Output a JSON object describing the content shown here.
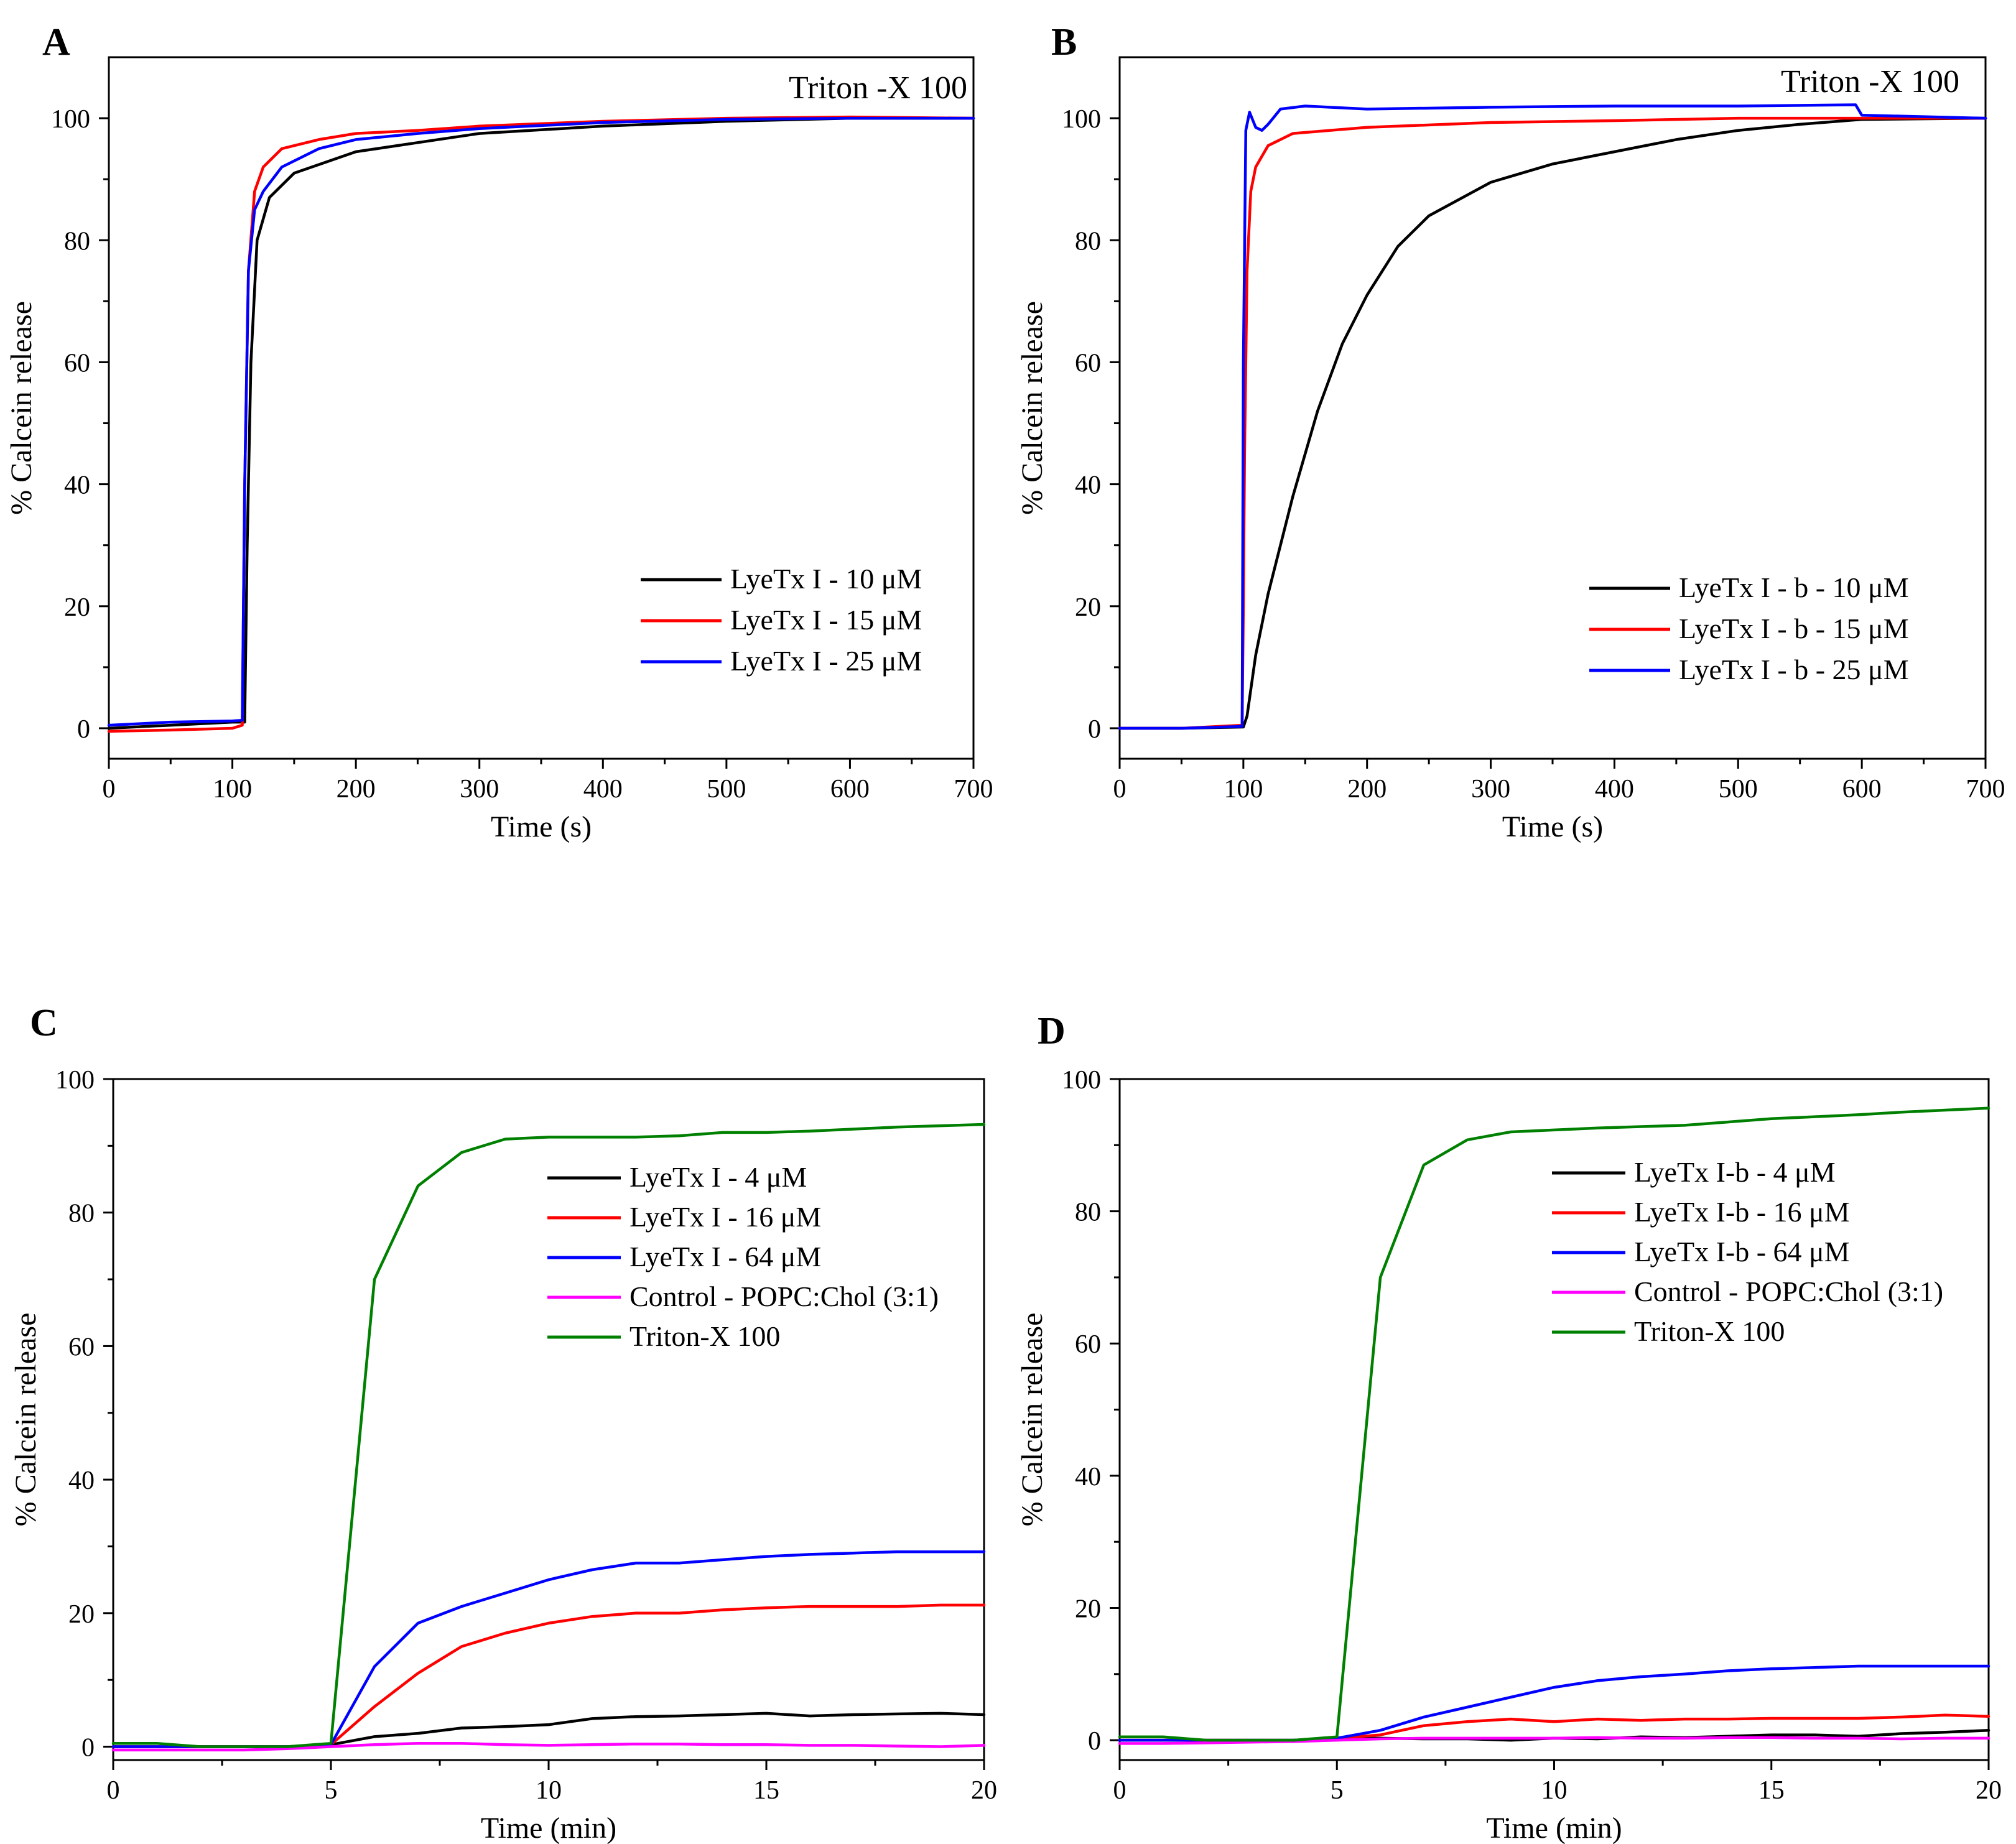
{
  "chart_data": [
    {
      "panel": "A",
      "type": "line",
      "xlabel": "Time (s)",
      "ylabel": "% Calcein release",
      "xlim": [
        0,
        700
      ],
      "ylim": [
        -5,
        110
      ],
      "xticks": [
        0,
        100,
        200,
        300,
        400,
        500,
        600,
        700
      ],
      "yticks": [
        0,
        20,
        40,
        60,
        80,
        100
      ],
      "annotation": "Triton -X 100",
      "legend_position": "lower-right",
      "series": [
        {
          "name": "LyeTx I - 10 μM",
          "color": "#000000",
          "x": [
            0,
            50,
            100,
            110,
            112,
            115,
            120,
            130,
            150,
            200,
            250,
            300,
            400,
            500,
            600,
            700
          ],
          "y": [
            0,
            0.5,
            1,
            1,
            30,
            60,
            80,
            87,
            91,
            94.5,
            96,
            97.5,
            98.7,
            99.5,
            100,
            100
          ]
        },
        {
          "name": "LyeTx I - 15 μM",
          "color": "#ff0000",
          "x": [
            0,
            50,
            100,
            108,
            110,
            113,
            118,
            125,
            140,
            170,
            200,
            250,
            300,
            400,
            500,
            600,
            700
          ],
          "y": [
            -0.5,
            -0.3,
            0,
            0.5,
            40,
            75,
            88,
            92,
            95,
            96.5,
            97.5,
            98,
            98.7,
            99.5,
            100,
            100.2,
            100
          ]
        },
        {
          "name": "LyeTx I - 25 μM",
          "color": "#0000ff",
          "x": [
            0,
            50,
            100,
            108,
            110,
            113,
            118,
            125,
            140,
            170,
            200,
            250,
            300,
            400,
            500,
            600,
            700
          ],
          "y": [
            0.5,
            1,
            1.2,
            1.3,
            40,
            75,
            85,
            88,
            92,
            95,
            96.5,
            97.5,
            98.3,
            99.3,
            99.8,
            100,
            100
          ]
        }
      ]
    },
    {
      "panel": "B",
      "type": "line",
      "xlabel": "Time (s)",
      "ylabel": "% Calcein release",
      "xlim": [
        0,
        700
      ],
      "ylim": [
        -5,
        110
      ],
      "xticks": [
        0,
        100,
        200,
        300,
        400,
        500,
        600,
        700
      ],
      "yticks": [
        0,
        20,
        40,
        60,
        80,
        100
      ],
      "annotation": "Triton -X 100",
      "legend_position": "lower-right",
      "series": [
        {
          "name": "LyeTx I - b - 10 μM",
          "color": "#000000",
          "x": [
            0,
            50,
            100,
            103,
            110,
            120,
            140,
            160,
            180,
            200,
            225,
            250,
            300,
            350,
            400,
            450,
            500,
            550,
            600,
            700
          ],
          "y": [
            0,
            0,
            0.2,
            2,
            12,
            22,
            38,
            52,
            63,
            71,
            79,
            84,
            89.5,
            92.5,
            94.5,
            96.5,
            98,
            99,
            99.8,
            100
          ]
        },
        {
          "name": "LyeTx I - b - 15 μM",
          "color": "#ff0000",
          "x": [
            0,
            50,
            99,
            100,
            101,
            103,
            106,
            110,
            120,
            140,
            200,
            300,
            400,
            500,
            600,
            700
          ],
          "y": [
            0,
            0,
            0.5,
            20,
            45,
            75,
            88,
            92,
            95.5,
            97.5,
            98.5,
            99.3,
            99.6,
            100,
            100,
            100
          ]
        },
        {
          "name": "LyeTx I - b - 25 μM",
          "color": "#0000ff",
          "x": [
            0,
            50,
            99,
            100,
            102,
            105,
            110,
            115,
            120,
            130,
            150,
            200,
            300,
            400,
            500,
            595,
            600,
            700
          ],
          "y": [
            0,
            0,
            0.3,
            60,
            98,
            101,
            98.5,
            98,
            99,
            101.5,
            102,
            101.5,
            101.8,
            102,
            102,
            102.2,
            100.5,
            100
          ]
        }
      ]
    },
    {
      "panel": "C",
      "type": "line",
      "xlabel": "Time (min)",
      "ylabel": "% Calcein release",
      "xlim": [
        0,
        20
      ],
      "ylim": [
        -2,
        100
      ],
      "xticks": [
        0,
        5,
        10,
        15,
        20
      ],
      "yticks": [
        0,
        20,
        40,
        60,
        80,
        100
      ],
      "legend_position": "center-right",
      "series": [
        {
          "name": "LyeTx I - 4 μM",
          "color": "#000000",
          "x": [
            0,
            1,
            2,
            3,
            4,
            5,
            6,
            7,
            8,
            9,
            10,
            11,
            12,
            13,
            14,
            15,
            16,
            17,
            18,
            19,
            20
          ],
          "y": [
            0,
            0,
            0,
            0,
            0,
            0.3,
            1.5,
            2,
            2.8,
            3,
            3.3,
            4.2,
            4.5,
            4.6,
            4.8,
            5,
            4.6,
            4.8,
            4.9,
            5,
            4.8
          ]
        },
        {
          "name": "LyeTx I - 16 μM",
          "color": "#ff0000",
          "x": [
            0,
            1,
            2,
            3,
            4,
            5,
            6,
            7,
            8,
            9,
            10,
            11,
            12,
            13,
            14,
            15,
            16,
            17,
            18,
            19,
            20
          ],
          "y": [
            0,
            0,
            0,
            0,
            0,
            0.3,
            6,
            11,
            15,
            17,
            18.5,
            19.5,
            20,
            20,
            20.5,
            20.8,
            21,
            21,
            21,
            21.2,
            21.2
          ]
        },
        {
          "name": "LyeTx I - 64 μM",
          "color": "#0000ff",
          "x": [
            0,
            1,
            2,
            3,
            4,
            5,
            6,
            7,
            8,
            9,
            10,
            11,
            12,
            13,
            14,
            15,
            16,
            17,
            18,
            19,
            20
          ],
          "y": [
            0,
            0,
            0,
            0,
            0,
            0.3,
            12,
            18.5,
            21,
            23,
            25,
            26.5,
            27.5,
            27.5,
            28,
            28.5,
            28.8,
            29,
            29.2,
            29.2,
            29.2
          ]
        },
        {
          "name": "Control - POPC:Chol (3:1)",
          "color": "#ff00ff",
          "x": [
            0,
            1,
            2,
            3,
            4,
            5,
            6,
            7,
            8,
            9,
            10,
            11,
            12,
            13,
            14,
            15,
            16,
            17,
            18,
            19,
            20
          ],
          "y": [
            -0.5,
            -0.5,
            -0.5,
            -0.5,
            -0.3,
            0,
            0.3,
            0.5,
            0.5,
            0.3,
            0.2,
            0.3,
            0.4,
            0.4,
            0.3,
            0.3,
            0.2,
            0.2,
            0.1,
            0,
            0.2
          ]
        },
        {
          "name": "Triton-X 100",
          "color": "#008000",
          "x": [
            0,
            1,
            2,
            3,
            4,
            5,
            6,
            7,
            8,
            9,
            10,
            11,
            12,
            13,
            14,
            15,
            16,
            17,
            18,
            19,
            20
          ],
          "y": [
            0.5,
            0.5,
            0,
            0,
            0,
            0.5,
            70,
            84,
            89,
            91,
            91.3,
            91.3,
            91.3,
            91.5,
            92,
            92,
            92.2,
            92.5,
            92.8,
            93,
            93.2
          ]
        }
      ]
    },
    {
      "panel": "D",
      "type": "line",
      "xlabel": "Time (min)",
      "ylabel": "% Calcein release",
      "xlim": [
        0,
        20
      ],
      "ylim": [
        -3,
        100
      ],
      "xticks": [
        0,
        5,
        10,
        15,
        20
      ],
      "yticks": [
        0,
        20,
        40,
        60,
        80,
        100
      ],
      "legend_position": "center-right",
      "series": [
        {
          "name": "LyeTx I-b - 4 μM",
          "color": "#000000",
          "x": [
            0,
            1,
            2,
            3,
            4,
            5,
            6,
            7,
            8,
            9,
            10,
            11,
            12,
            13,
            14,
            15,
            16,
            17,
            18,
            19,
            20
          ],
          "y": [
            0,
            0,
            0,
            0,
            0,
            0.3,
            0.3,
            0.2,
            0.2,
            0,
            0.3,
            0.2,
            0.5,
            0.4,
            0.6,
            0.8,
            0.8,
            0.6,
            1,
            1.2,
            1.5
          ]
        },
        {
          "name": "LyeTx I-b - 16 μM",
          "color": "#ff0000",
          "x": [
            0,
            1,
            2,
            3,
            4,
            5,
            6,
            7,
            8,
            9,
            10,
            11,
            12,
            13,
            14,
            15,
            16,
            17,
            18,
            19,
            20
          ],
          "y": [
            0,
            0,
            0,
            0,
            0,
            0.3,
            0.8,
            2.2,
            2.8,
            3.2,
            2.8,
            3.2,
            3,
            3.2,
            3.2,
            3.3,
            3.3,
            3.3,
            3.5,
            3.8,
            3.6
          ]
        },
        {
          "name": "LyeTx I-b - 64 μM",
          "color": "#0000ff",
          "x": [
            0,
            1,
            2,
            3,
            4,
            5,
            6,
            7,
            8,
            9,
            10,
            11,
            12,
            13,
            14,
            15,
            16,
            17,
            18,
            19,
            20
          ],
          "y": [
            0,
            0,
            0,
            0,
            0,
            0.3,
            1.5,
            3.5,
            5,
            6.5,
            8,
            9,
            9.6,
            10,
            10.5,
            10.8,
            11,
            11.2,
            11.2,
            11.2,
            11.2
          ]
        },
        {
          "name": "Control - POPC:Chol (3:1)",
          "color": "#ff00ff",
          "x": [
            0,
            1,
            2,
            3,
            4,
            5,
            6,
            7,
            8,
            9,
            10,
            11,
            12,
            13,
            14,
            15,
            16,
            17,
            18,
            19,
            20
          ],
          "y": [
            -0.5,
            -0.5,
            -0.4,
            -0.3,
            -0.2,
            0,
            0.2,
            0.3,
            0.3,
            0.3,
            0.3,
            0.4,
            0.3,
            0.3,
            0.4,
            0.4,
            0.3,
            0.3,
            0.2,
            0.3,
            0.3
          ]
        },
        {
          "name": "Triton-X 100",
          "color": "#008000",
          "x": [
            0,
            1,
            2,
            3,
            4,
            5,
            6,
            7,
            8,
            9,
            10,
            11,
            12,
            13,
            14,
            15,
            16,
            17,
            18,
            19,
            20
          ],
          "y": [
            0.5,
            0.5,
            0,
            0,
            0,
            0.5,
            70,
            87,
            90.8,
            92,
            92.3,
            92.6,
            92.8,
            93,
            93.5,
            94,
            94.3,
            94.6,
            95,
            95.3,
            95.6
          ]
        }
      ]
    }
  ]
}
